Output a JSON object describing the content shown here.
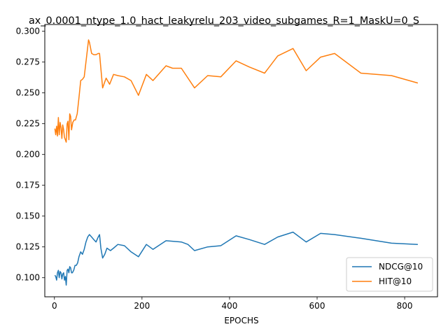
{
  "chart_data": {
    "type": "line",
    "title": "ax_0.0001_ntype_1.0_hact_leakyrelu_203_video_subgames_R=1_MaskU=0_S",
    "xlabel": "EPOCHS",
    "ylabel": "",
    "xlim": [
      -22,
      875
    ],
    "ylim": [
      0.0845,
      0.3055
    ],
    "xticks": [
      0,
      200,
      400,
      600,
      800
    ],
    "yticks": [
      0.1,
      0.125,
      0.15,
      0.175,
      0.2,
      0.225,
      0.25,
      0.275,
      0.3
    ],
    "grid": false,
    "legend_position": "lower-right",
    "series": [
      {
        "name": "NDCG@10",
        "color": "#1f77b4",
        "points": [
          [
            1,
            0.102
          ],
          [
            3,
            0.101
          ],
          [
            5,
            0.098
          ],
          [
            7,
            0.104
          ],
          [
            9,
            0.106
          ],
          [
            11,
            0.1
          ],
          [
            13,
            0.105
          ],
          [
            15,
            0.104
          ],
          [
            17,
            0.099
          ],
          [
            19,
            0.103
          ],
          [
            21,
            0.104
          ],
          [
            23,
            0.098
          ],
          [
            25,
            0.101
          ],
          [
            27,
            0.094
          ],
          [
            29,
            0.106
          ],
          [
            31,
            0.107
          ],
          [
            33,
            0.104
          ],
          [
            35,
            0.109
          ],
          [
            37,
            0.108
          ],
          [
            39,
            0.104
          ],
          [
            41,
            0.104
          ],
          [
            44,
            0.106
          ],
          [
            47,
            0.11
          ],
          [
            50,
            0.11
          ],
          [
            53,
            0.112
          ],
          [
            56,
            0.117
          ],
          [
            60,
            0.121
          ],
          [
            64,
            0.119
          ],
          [
            68,
            0.123
          ],
          [
            72,
            0.129
          ],
          [
            76,
            0.133
          ],
          [
            80,
            0.135
          ],
          [
            85,
            0.133
          ],
          [
            90,
            0.131
          ],
          [
            95,
            0.129
          ],
          [
            100,
            0.133
          ],
          [
            103,
            0.135
          ],
          [
            106,
            0.124
          ],
          [
            110,
            0.116
          ],
          [
            115,
            0.119
          ],
          [
            120,
            0.124
          ],
          [
            128,
            0.122
          ],
          [
            135,
            0.124
          ],
          [
            145,
            0.127
          ],
          [
            160,
            0.126
          ],
          [
            175,
            0.121
          ],
          [
            192,
            0.117
          ],
          [
            210,
            0.127
          ],
          [
            225,
            0.123
          ],
          [
            255,
            0.13
          ],
          [
            290,
            0.129
          ],
          [
            305,
            0.127
          ],
          [
            320,
            0.122
          ],
          [
            350,
            0.125
          ],
          [
            380,
            0.126
          ],
          [
            415,
            0.134
          ],
          [
            445,
            0.131
          ],
          [
            480,
            0.127
          ],
          [
            510,
            0.133
          ],
          [
            545,
            0.137
          ],
          [
            575,
            0.129
          ],
          [
            608,
            0.136
          ],
          [
            640,
            0.135
          ],
          [
            700,
            0.132
          ],
          [
            770,
            0.128
          ],
          [
            830,
            0.127
          ]
        ]
      },
      {
        "name": "HIT@10",
        "color": "#ff7f0e",
        "points": [
          [
            1,
            0.221
          ],
          [
            3,
            0.216
          ],
          [
            5,
            0.223
          ],
          [
            7,
            0.215
          ],
          [
            9,
            0.23
          ],
          [
            11,
            0.216
          ],
          [
            13,
            0.226
          ],
          [
            15,
            0.222
          ],
          [
            17,
            0.213
          ],
          [
            19,
            0.224
          ],
          [
            21,
            0.22
          ],
          [
            23,
            0.214
          ],
          [
            25,
            0.212
          ],
          [
            27,
            0.21
          ],
          [
            29,
            0.225
          ],
          [
            31,
            0.227
          ],
          [
            33,
            0.212
          ],
          [
            35,
            0.233
          ],
          [
            37,
            0.231
          ],
          [
            39,
            0.22
          ],
          [
            42,
            0.226
          ],
          [
            45,
            0.228
          ],
          [
            48,
            0.228
          ],
          [
            52,
            0.233
          ],
          [
            56,
            0.246
          ],
          [
            60,
            0.26
          ],
          [
            64,
            0.261
          ],
          [
            68,
            0.263
          ],
          [
            73,
            0.278
          ],
          [
            78,
            0.293
          ],
          [
            80,
            0.291
          ],
          [
            85,
            0.282
          ],
          [
            90,
            0.281
          ],
          [
            95,
            0.281
          ],
          [
            100,
            0.282
          ],
          [
            103,
            0.282
          ],
          [
            107,
            0.266
          ],
          [
            110,
            0.254
          ],
          [
            118,
            0.262
          ],
          [
            126,
            0.257
          ],
          [
            135,
            0.265
          ],
          [
            145,
            0.264
          ],
          [
            160,
            0.263
          ],
          [
            175,
            0.26
          ],
          [
            192,
            0.248
          ],
          [
            210,
            0.265
          ],
          [
            225,
            0.26
          ],
          [
            255,
            0.272
          ],
          [
            270,
            0.27
          ],
          [
            290,
            0.27
          ],
          [
            320,
            0.254
          ],
          [
            350,
            0.264
          ],
          [
            380,
            0.263
          ],
          [
            415,
            0.276
          ],
          [
            445,
            0.271
          ],
          [
            480,
            0.266
          ],
          [
            510,
            0.28
          ],
          [
            545,
            0.286
          ],
          [
            575,
            0.268
          ],
          [
            608,
            0.279
          ],
          [
            640,
            0.282
          ],
          [
            700,
            0.266
          ],
          [
            770,
            0.264
          ],
          [
            830,
            0.258
          ]
        ]
      }
    ]
  }
}
